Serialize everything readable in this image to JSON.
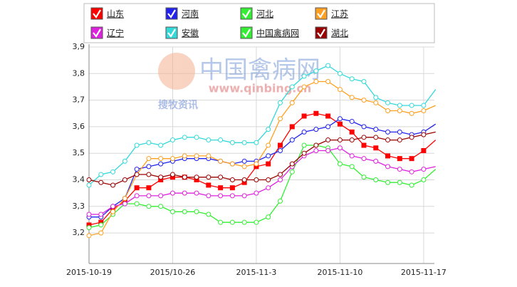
{
  "chart_data": {
    "type": "line",
    "watermark": [
      "中国禽病网",
      "www.qinbing.cn",
      "搜牧资讯"
    ],
    "categories": [
      "2015-10-19",
      null,
      null,
      null,
      null,
      null,
      null,
      "2015/10-26",
      null,
      null,
      null,
      null,
      null,
      null,
      "2015-11-3",
      null,
      null,
      null,
      null,
      null,
      null,
      "2015-11-10",
      null,
      null,
      null,
      null,
      null,
      null,
      "2015-11-17",
      null
    ],
    "ylim": [
      3.085,
      3.9
    ],
    "yticks": [
      {
        "value": 3.2,
        "label": "3,2"
      },
      {
        "value": 3.3,
        "label": "3,3"
      },
      {
        "value": 3.4,
        "label": "3,4"
      },
      {
        "value": 3.5,
        "label": "3,5"
      },
      {
        "value": 3.6,
        "label": "3,6"
      },
      {
        "value": 3.7,
        "label": "3,7"
      },
      {
        "value": 3.8,
        "label": "3,8"
      },
      {
        "value": 3.9,
        "label": "3,9"
      }
    ],
    "grid": true,
    "series": [
      {
        "name": "山东",
        "color": "#ff0000",
        "marker": "square",
        "values": [
          3.23,
          3.24,
          3.29,
          3.32,
          3.37,
          3.37,
          3.4,
          3.41,
          3.41,
          3.4,
          3.38,
          3.37,
          3.37,
          3.39,
          3.45,
          3.46,
          3.53,
          3.6,
          3.64,
          3.65,
          3.64,
          3.61,
          3.58,
          3.53,
          3.52,
          3.49,
          3.48,
          3.48,
          3.51,
          3.55
        ]
      },
      {
        "name": "河南",
        "color": "#2222ee",
        "marker": "circle",
        "values": [
          3.26,
          3.26,
          3.3,
          3.33,
          3.44,
          3.45,
          3.46,
          3.47,
          3.48,
          3.48,
          3.48,
          3.47,
          3.46,
          3.47,
          3.47,
          3.49,
          3.51,
          3.55,
          3.58,
          3.59,
          3.6,
          3.63,
          3.62,
          3.6,
          3.59,
          3.58,
          3.58,
          3.57,
          3.58,
          3.61
        ]
      },
      {
        "name": "河北",
        "color": "#33ee33",
        "marker": "circle",
        "values": [
          3.22,
          3.23,
          3.27,
          3.31,
          3.31,
          3.3,
          3.3,
          3.28,
          3.28,
          3.28,
          3.27,
          3.24,
          3.24,
          3.24,
          3.24,
          3.26,
          3.32,
          3.43,
          3.53,
          3.53,
          3.52,
          3.46,
          3.45,
          3.41,
          3.4,
          3.39,
          3.39,
          3.38,
          3.4,
          3.44
        ]
      },
      {
        "name": "江苏",
        "color": "#ffa020",
        "marker": "circle",
        "values": [
          3.19,
          3.2,
          3.28,
          3.33,
          3.42,
          3.48,
          3.48,
          3.48,
          3.49,
          3.49,
          3.49,
          3.47,
          3.46,
          3.45,
          3.46,
          3.53,
          3.63,
          3.69,
          3.75,
          3.77,
          3.77,
          3.74,
          3.71,
          3.7,
          3.69,
          3.66,
          3.66,
          3.65,
          3.66,
          3.68
        ]
      },
      {
        "name": "辽宁",
        "color": "#dd22dd",
        "marker": "circle",
        "values": [
          3.27,
          3.27,
          3.3,
          3.31,
          3.34,
          3.34,
          3.34,
          3.35,
          3.35,
          3.35,
          3.34,
          3.34,
          3.34,
          3.34,
          3.35,
          3.37,
          3.4,
          3.45,
          3.49,
          3.51,
          3.51,
          3.52,
          3.49,
          3.48,
          3.47,
          3.45,
          3.44,
          3.43,
          3.44,
          3.45
        ]
      },
      {
        "name": "安徽",
        "color": "#33d8d8",
        "marker": "circle",
        "values": [
          3.38,
          3.42,
          3.43,
          3.47,
          3.53,
          3.54,
          3.53,
          3.55,
          3.56,
          3.56,
          3.55,
          3.55,
          3.54,
          3.54,
          3.54,
          3.59,
          3.69,
          3.75,
          3.79,
          3.81,
          3.83,
          3.8,
          3.78,
          3.77,
          3.71,
          3.69,
          3.68,
          3.68,
          3.68,
          3.74
        ]
      },
      {
        "name": "中国禽病网",
        "color": "#33ee33",
        "marker": "circle",
        "values": [
          null,
          null,
          null,
          null,
          null,
          null,
          null,
          null,
          null,
          null,
          null,
          null,
          null,
          null,
          null,
          null,
          null,
          null,
          null,
          null,
          null,
          null,
          null,
          null,
          null,
          null,
          null,
          null,
          null,
          null
        ]
      },
      {
        "name": "湖北",
        "color": "#990000",
        "marker": "circle",
        "values": [
          3.4,
          3.39,
          3.38,
          3.4,
          3.42,
          3.42,
          3.41,
          3.42,
          3.41,
          3.41,
          3.41,
          3.41,
          3.4,
          3.4,
          3.4,
          3.4,
          3.42,
          3.46,
          3.5,
          3.53,
          3.55,
          3.55,
          3.55,
          3.56,
          3.56,
          3.55,
          3.55,
          3.56,
          3.57,
          3.58
        ]
      }
    ]
  }
}
